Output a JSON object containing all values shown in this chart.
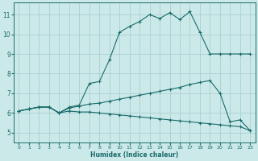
{
  "xlabel": "Humidex (Indice chaleur)",
  "bg_color": "#cce9e9",
  "line_color": "#1a6b6b",
  "grid_color": "#aacfcf",
  "xlim": [
    -0.5,
    23.5
  ],
  "ylim": [
    4.5,
    11.6
  ],
  "xticks": [
    0,
    1,
    2,
    3,
    4,
    5,
    6,
    7,
    8,
    9,
    10,
    11,
    12,
    13,
    14,
    15,
    16,
    17,
    18,
    19,
    20,
    21,
    22,
    23
  ],
  "yticks": [
    5,
    6,
    7,
    8,
    9,
    10,
    11
  ],
  "series": [
    [
      6.1,
      6.2,
      6.3,
      6.3,
      6.0,
      6.3,
      6.4,
      7.5,
      7.6,
      8.7,
      10.1,
      10.4,
      10.65,
      11.0,
      10.8,
      11.1,
      10.75,
      11.15,
      10.1,
      9.0,
      9.0,
      9.0,
      9.0,
      9.0
    ],
    [
      6.1,
      6.2,
      6.3,
      6.3,
      6.0,
      6.25,
      6.35,
      6.45,
      6.5,
      6.6,
      6.7,
      6.8,
      6.9,
      7.0,
      7.1,
      7.2,
      7.3,
      7.45,
      7.55,
      7.65,
      7.0,
      5.55,
      5.65,
      5.1
    ],
    [
      6.1,
      6.2,
      6.3,
      6.3,
      6.0,
      6.1,
      6.05,
      6.05,
      6.0,
      5.95,
      5.9,
      5.85,
      5.8,
      5.75,
      5.7,
      5.65,
      5.6,
      5.55,
      5.5,
      5.45,
      5.4,
      5.35,
      5.3,
      5.1
    ]
  ]
}
